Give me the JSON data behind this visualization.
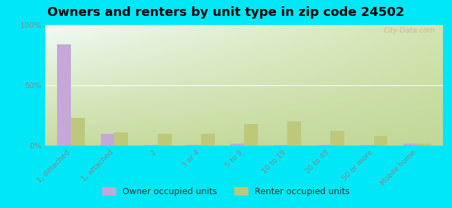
{
  "title": "Owners and renters by unit type in zip code 24502",
  "categories": [
    "1, detached",
    "1, attached",
    "2",
    "3 or 4",
    "5 to 9",
    "10 to 19",
    "20 to 49",
    "50 or more",
    "Mobile home"
  ],
  "owner_values": [
    84,
    10,
    0.5,
    0.5,
    1.5,
    0.5,
    0.5,
    0.5,
    1.5
  ],
  "renter_values": [
    23,
    11,
    10,
    10,
    18,
    20,
    12,
    8,
    1.5
  ],
  "owner_color": "#c4a8d8",
  "renter_color": "#bec87a",
  "outer_bg": "#00e8f8",
  "plot_bg_topleft": "#e8f8f4",
  "plot_bg_bottomright": "#dde8c0",
  "ylim": [
    0,
    100
  ],
  "yticks": [
    0,
    50,
    100
  ],
  "ytick_labels": [
    "0%",
    "50%",
    "100%"
  ],
  "bar_width": 0.32,
  "title_fontsize": 13,
  "legend_owner": "Owner occupied units",
  "legend_renter": "Renter occupied units",
  "watermark": "City-Data.com",
  "grid_color": "#e0e8d8",
  "tick_color": "#888888"
}
